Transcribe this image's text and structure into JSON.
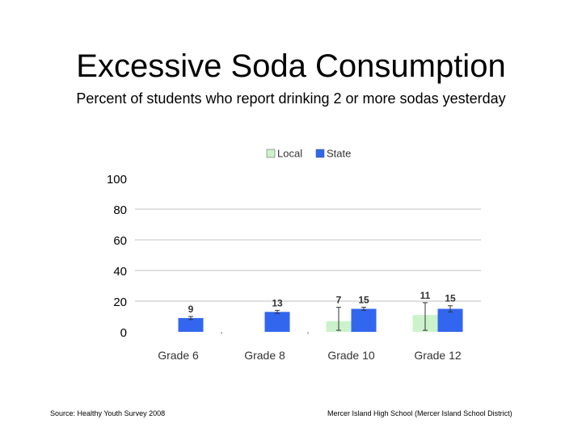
{
  "title": "Excessive Soda Consumption",
  "subtitle": "Percent of students who report drinking 2 or more sodas yesterday",
  "footer": {
    "source": "Source: Healthy Youth Survey 2008",
    "org": "Mercer Island High School (Mercer Island School District)"
  },
  "colors": {
    "local": "#ccf2cc",
    "state": "#3366ee",
    "grid": "#c0c0c0"
  },
  "chart_data": {
    "type": "bar",
    "title": "",
    "xlabel": "",
    "ylabel": "",
    "categories": [
      "Grade 6",
      "Grade 8",
      "Grade 10",
      "Grade 12"
    ],
    "ylim": [
      0,
      100
    ],
    "yticks": [
      0,
      20,
      40,
      60,
      80,
      100
    ],
    "grid": true,
    "legend": "top",
    "series": [
      {
        "name": "Local",
        "values": [
          null,
          null,
          7,
          11
        ],
        "labels": [
          "",
          "",
          "7",
          "11"
        ],
        "error_bars": [
          null,
          null,
          [
            1,
            16
          ],
          [
            1,
            19
          ]
        ]
      },
      {
        "name": "State",
        "values": [
          9,
          13,
          15,
          15
        ],
        "labels": [
          "9",
          "13",
          "15",
          "15"
        ],
        "error_bars": [
          [
            8,
            10
          ],
          [
            12,
            14
          ],
          [
            14,
            16
          ],
          [
            13,
            17
          ]
        ]
      }
    ]
  }
}
